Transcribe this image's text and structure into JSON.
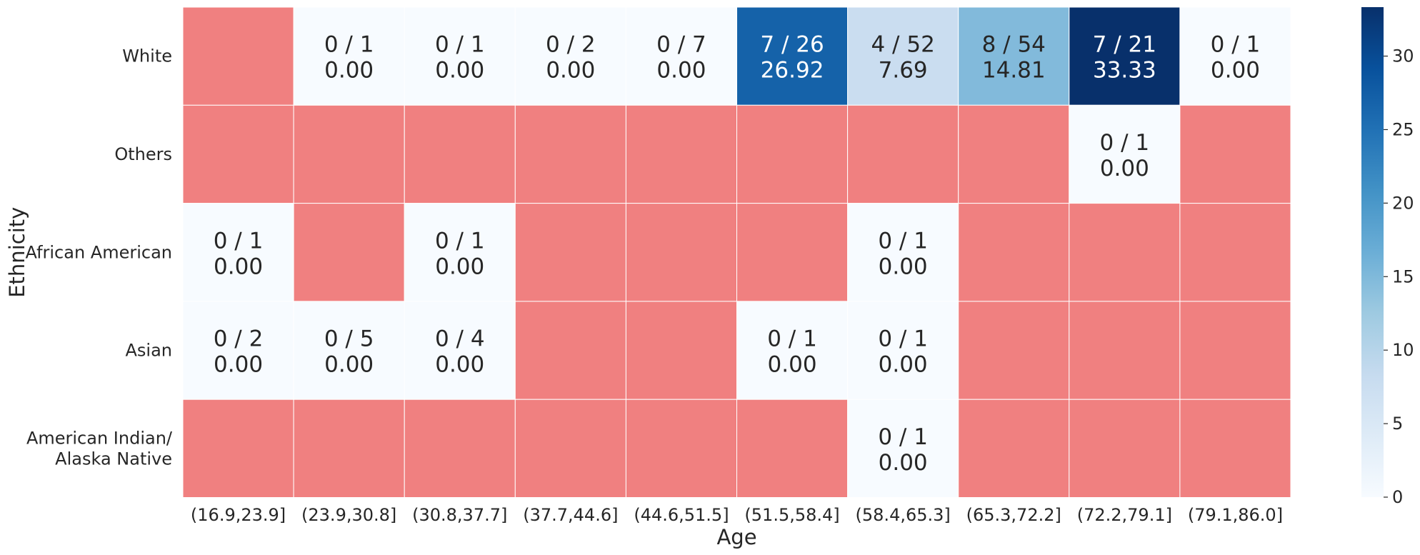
{
  "chart_data": {
    "type": "heatmap",
    "title": "",
    "xlabel": "Age",
    "ylabel": "Ethnicity",
    "x_categories": [
      "(16.9,23.9]",
      "(23.9,30.8]",
      "(30.8,37.7]",
      "(37.7,44.6]",
      "(44.6,51.5]",
      "(51.5,58.4]",
      "(58.4,65.3]",
      "(65.3,72.2]",
      "(72.2,79.1]",
      "(79.1,86.0]"
    ],
    "y_categories": [
      [
        "White"
      ],
      [
        "Others"
      ],
      [
        "African American"
      ],
      [
        "Asian"
      ],
      [
        "American Indian/",
        "Alaska Native"
      ]
    ],
    "missing_color": "#f08080",
    "colormap": "Blues",
    "colorbar": {
      "min": 0,
      "max": 33.33,
      "ticks": [
        0,
        5,
        10,
        15,
        20,
        25,
        30
      ]
    },
    "cells": [
      [
        null,
        {
          "label": "0 / 1",
          "value": 0.0,
          "text": "0.00"
        },
        {
          "label": "0 / 1",
          "value": 0.0,
          "text": "0.00"
        },
        {
          "label": "0 / 2",
          "value": 0.0,
          "text": "0.00"
        },
        {
          "label": "0 / 7",
          "value": 0.0,
          "text": "0.00"
        },
        {
          "label": "7 / 26",
          "value": 26.92,
          "text": "26.92"
        },
        {
          "label": "4 / 52",
          "value": 7.69,
          "text": "7.69"
        },
        {
          "label": "8 / 54",
          "value": 14.81,
          "text": "14.81"
        },
        {
          "label": "7 / 21",
          "value": 33.33,
          "text": "33.33"
        },
        {
          "label": "0 / 1",
          "value": 0.0,
          "text": "0.00"
        }
      ],
      [
        null,
        null,
        null,
        null,
        null,
        null,
        null,
        null,
        {
          "label": "0 / 1",
          "value": 0.0,
          "text": "0.00"
        },
        null
      ],
      [
        {
          "label": "0 / 1",
          "value": 0.0,
          "text": "0.00"
        },
        null,
        {
          "label": "0 / 1",
          "value": 0.0,
          "text": "0.00"
        },
        null,
        null,
        null,
        {
          "label": "0 / 1",
          "value": 0.0,
          "text": "0.00"
        },
        null,
        null,
        null
      ],
      [
        {
          "label": "0 / 2",
          "value": 0.0,
          "text": "0.00"
        },
        {
          "label": "0 / 5",
          "value": 0.0,
          "text": "0.00"
        },
        {
          "label": "0 / 4",
          "value": 0.0,
          "text": "0.00"
        },
        null,
        null,
        {
          "label": "0 / 1",
          "value": 0.0,
          "text": "0.00"
        },
        {
          "label": "0 / 1",
          "value": 0.0,
          "text": "0.00"
        },
        null,
        null,
        null
      ],
      [
        null,
        null,
        null,
        null,
        null,
        null,
        {
          "label": "0 / 1",
          "value": 0.0,
          "text": "0.00"
        },
        null,
        null,
        null
      ]
    ]
  }
}
